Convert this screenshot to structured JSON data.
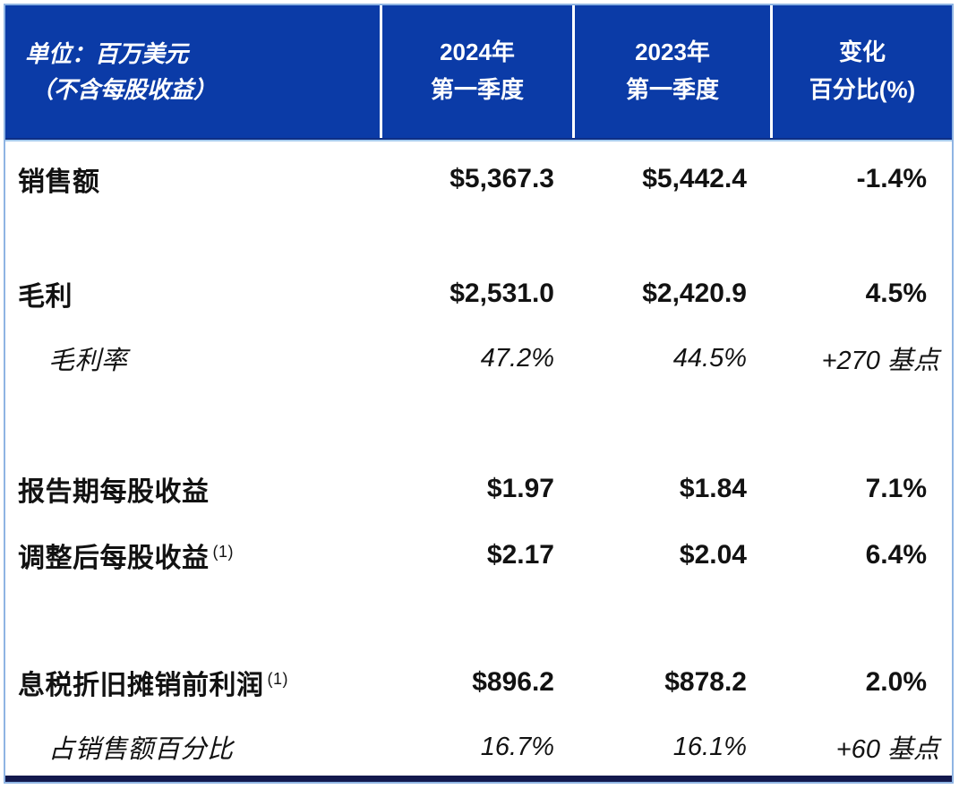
{
  "table": {
    "unit_note": {
      "line1": "单位：百万美元",
      "line2": "（不含每股收益）"
    },
    "columns": [
      {
        "line1": "2024年",
        "line2": "第一季度"
      },
      {
        "line1": "2023年",
        "line2": "第一季度"
      },
      {
        "line1": "变化",
        "line2": "百分比(%)"
      }
    ],
    "rows": [
      {
        "label": "销售额",
        "sup": "",
        "type": "main",
        "q1_2024": "$5,367.3",
        "q1_2023": "$5,442.4",
        "change": "-1.4%"
      },
      {
        "label": "毛利",
        "sup": "",
        "type": "main",
        "q1_2024": "$2,531.0",
        "q1_2023": "$2,420.9",
        "change": "4.5%"
      },
      {
        "label": "毛利率",
        "sup": "",
        "type": "sub",
        "q1_2024": "47.2%",
        "q1_2023": "44.5%",
        "change": "+270 基点"
      },
      {
        "label": "报告期每股收益",
        "sup": "",
        "type": "main",
        "q1_2024": "$1.97",
        "q1_2023": "$1.84",
        "change": "7.1%"
      },
      {
        "label": "调整后每股收益",
        "sup": "(1)",
        "type": "main",
        "q1_2024": "$2.17",
        "q1_2023": "$2.04",
        "change": "6.4%"
      },
      {
        "label": "息税折旧摊销前利润",
        "sup": "(1)",
        "type": "main",
        "q1_2024": "$896.2",
        "q1_2023": "$878.2",
        "change": "2.0%"
      },
      {
        "label": "占销售额百分比",
        "sup": "",
        "type": "sub",
        "q1_2024": "16.7%",
        "q1_2023": "16.1%",
        "change": "+60 基点"
      }
    ]
  },
  "colors": {
    "header_blue": "#0B3BA7",
    "divider_white": "#FFFFFF",
    "outer_border_blue": "#8FB4E3",
    "bottom_bar_navy": "#13194D",
    "text": "#121212"
  },
  "chart_data": {
    "type": "table",
    "title": "季度业绩对比表",
    "columns": [
      "单位：百万美元（不含每股收益）",
      "2024年第一季度",
      "2023年第一季度",
      "变化百分比(%)"
    ],
    "rows": [
      [
        "销售额",
        "$5,367.3",
        "$5,442.4",
        "-1.4%"
      ],
      [
        "毛利",
        "$2,531.0",
        "$2,420.9",
        "4.5%"
      ],
      [
        "毛利率",
        "47.2%",
        "44.5%",
        "+270 基点"
      ],
      [
        "报告期每股收益",
        "$1.97",
        "$1.84",
        "7.1%"
      ],
      [
        "调整后每股收益 (1)",
        "$2.17",
        "$2.04",
        "6.4%"
      ],
      [
        "息税折旧摊销前利润 (1)",
        "$896.2",
        "$878.2",
        "2.0%"
      ],
      [
        "占销售额百分比",
        "16.7%",
        "16.1%",
        "+60 基点"
      ]
    ]
  }
}
